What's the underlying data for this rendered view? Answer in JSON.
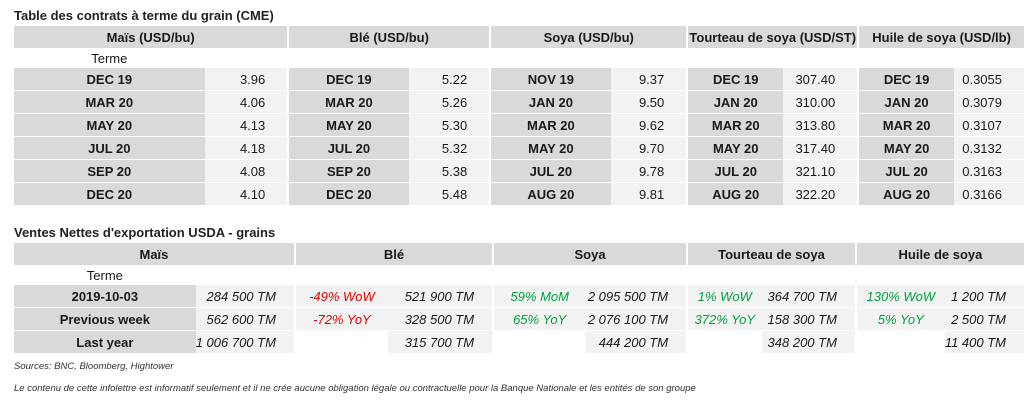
{
  "futures": {
    "title": "Table des contrats à terme du grain (CME)",
    "term_label": "Terme",
    "headers": [
      "Maïs (USD/bu)",
      "Blé (USD/bu)",
      "Soya (USD/bu)",
      "Tourteau de soya (USD/ST)",
      "Huile de soya (USD/lb)"
    ],
    "rows": [
      [
        [
          "DEC 19",
          "3.96"
        ],
        [
          "DEC 19",
          "5.22"
        ],
        [
          "NOV 19",
          "9.37"
        ],
        [
          "DEC 19",
          "307.40"
        ],
        [
          "DEC 19",
          "0.3055"
        ]
      ],
      [
        [
          "MAR 20",
          "4.06"
        ],
        [
          "MAR 20",
          "5.26"
        ],
        [
          "JAN 20",
          "9.50"
        ],
        [
          "JAN 20",
          "310.00"
        ],
        [
          "JAN 20",
          "0.3079"
        ]
      ],
      [
        [
          "MAY 20",
          "4.13"
        ],
        [
          "MAY 20",
          "5.30"
        ],
        [
          "MAR 20",
          "9.62"
        ],
        [
          "MAR 20",
          "313.80"
        ],
        [
          "MAR 20",
          "0.3107"
        ]
      ],
      [
        [
          "JUL 20",
          "4.18"
        ],
        [
          "JUL 20",
          "5.32"
        ],
        [
          "MAY 20",
          "9.70"
        ],
        [
          "MAY 20",
          "317.40"
        ],
        [
          "MAY 20",
          "0.3132"
        ]
      ],
      [
        [
          "SEP 20",
          "4.08"
        ],
        [
          "SEP 20",
          "5.38"
        ],
        [
          "JUL 20",
          "9.78"
        ],
        [
          "JUL 20",
          "321.10"
        ],
        [
          "JUL 20",
          "0.3163"
        ]
      ],
      [
        [
          "DEC 20",
          "4.10"
        ],
        [
          "DEC 20",
          "5.48"
        ],
        [
          "AUG 20",
          "9.81"
        ],
        [
          "AUG 20",
          "322.20"
        ],
        [
          "AUG 20",
          "0.3166"
        ]
      ]
    ]
  },
  "exports": {
    "title": "Ventes Nettes d'exportation USDA - grains",
    "term_label": "Terme",
    "headers": [
      "Maïs",
      "Blé",
      "Soya",
      "Tourteau de soya",
      "Huile de soya"
    ],
    "rows": [
      {
        "label": "2019-10-03",
        "cells": [
          {
            "val": "284 500 TM"
          },
          {
            "chg": "-49% WoW",
            "color": "red",
            "val": "521 900 TM"
          },
          {
            "chg": "59% MoM",
            "color": "green",
            "val": "2 095 500 TM"
          },
          {
            "chg": "1% WoW",
            "color": "green",
            "val": "364 700 TM"
          },
          {
            "chg": "130% WoW",
            "color": "green",
            "val": "1 200 TM"
          }
        ]
      },
      {
        "label": "Previous week",
        "cells": [
          {
            "val": "562 600 TM"
          },
          {
            "chg": "-72% YoY",
            "color": "red",
            "val": "328 500 TM"
          },
          {
            "chg": "65% YoY",
            "color": "green",
            "val": "2 076 100 TM"
          },
          {
            "chg": "372% YoY",
            "color": "green",
            "val": "158 300 TM"
          },
          {
            "chg": "5% YoY",
            "color": "green",
            "val": "2 500 TM"
          }
        ]
      },
      {
        "label": "Last year",
        "cells": [
          {
            "val": "1 006 700 TM"
          },
          {
            "chg": "",
            "color": "",
            "val": "315 700 TM"
          },
          {
            "chg": "",
            "color": "",
            "val": "444 200 TM"
          },
          {
            "chg": "",
            "color": "",
            "val": "348 200 TM"
          },
          {
            "chg": "",
            "color": "",
            "val": "11 400 TM"
          }
        ]
      }
    ]
  },
  "sources": "Sources: BNC, Bloomberg, Hightower",
  "disclaimer": "Le contenu de cette infolettre est informatif seulement et il ne crée aucune obligation légale ou contractuelle pour la Banque Nationale et les entités de son groupe"
}
